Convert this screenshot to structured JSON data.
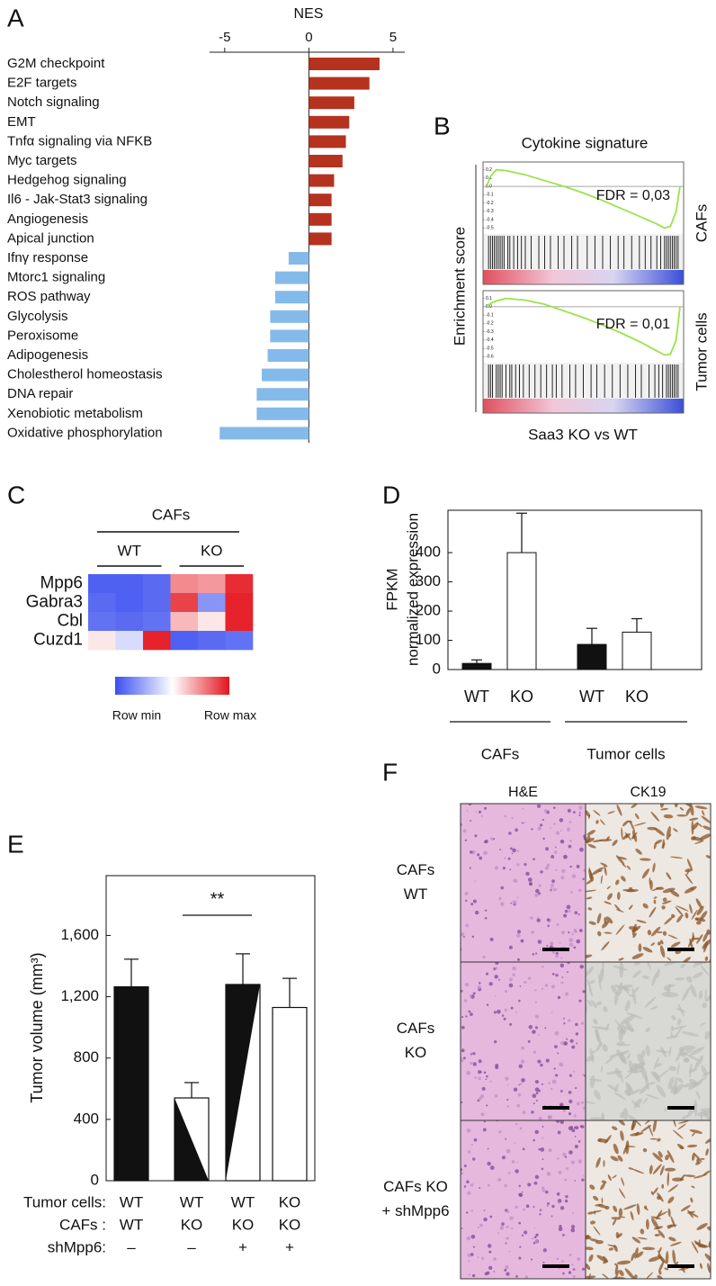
{
  "chart_data": [
    {
      "panel": "A",
      "type": "hbar",
      "title": "NES",
      "categories": [
        "G2M checkpoint",
        "E2F targets",
        "Notch signaling",
        "EMT",
        "Tnfα signaling via NFKB",
        "Myc targets",
        "Hedgehog signaling",
        "Il6 - Jak-Stat3 signaling",
        "Angiogenesis",
        "Apical junction",
        "Ifnγ response",
        "Mtorc1 signaling",
        "ROS pathway",
        "Glycolysis",
        "Peroxisome",
        "Adipogenesis",
        "Cholestherol homeostasis",
        "DNA repair",
        "Xenobiotic metabolism",
        "Oxidative phosphorylation"
      ],
      "values": [
        4.2,
        3.6,
        2.7,
        2.4,
        2.2,
        2.0,
        1.5,
        1.35,
        1.35,
        1.35,
        -1.2,
        -2.0,
        -2.0,
        -2.3,
        -2.3,
        -2.45,
        -2.8,
        -3.1,
        -3.1,
        -5.3
      ],
      "positive_color": "#b5321f",
      "negative_color": "#84baea",
      "xlim": [
        -5.9,
        5.7
      ],
      "xticks": [
        -5,
        0,
        5
      ]
    },
    {
      "panel": "B",
      "type": "gsea",
      "title": "Cytokine signature",
      "y_label": "Enrichment score",
      "x_label": "Saa3 KO vs WT",
      "color": "#9be34a",
      "xlim": [
        0,
        100
      ],
      "series": [
        {
          "name": "CAFs",
          "annotation": "FDR = 0,03",
          "x": [
            0,
            2,
            5,
            10,
            20,
            30,
            40,
            50,
            60,
            70,
            80,
            88,
            92,
            95,
            98,
            100
          ],
          "values": [
            0,
            0.12,
            0.2,
            0.19,
            0.14,
            0.07,
            0.0,
            -0.08,
            -0.17,
            -0.27,
            -0.37,
            -0.45,
            -0.5,
            -0.48,
            -0.3,
            0
          ],
          "ylim": [
            -0.55,
            0.25
          ],
          "yticks": [
            0.2,
            0.1,
            {
              "value": 0,
              "label": "0.0"
            },
            -0.1,
            -0.2,
            -0.3,
            -0.4,
            -0.5
          ],
          "hits": [
            1,
            2,
            3,
            4,
            5,
            6,
            7,
            8,
            9,
            11,
            12,
            14,
            16,
            18,
            20,
            23,
            27,
            30,
            33,
            37,
            40,
            44,
            47,
            52,
            56,
            60,
            64,
            68,
            71,
            75,
            79,
            82,
            85,
            88,
            90,
            92,
            93,
            94,
            95,
            96,
            97,
            98,
            99
          ]
        },
        {
          "name": "Tumor cells",
          "annotation": "FDR = 0,01",
          "x": [
            0,
            2,
            5,
            10,
            20,
            30,
            40,
            50,
            60,
            70,
            80,
            88,
            92,
            95,
            98,
            100
          ],
          "values": [
            0,
            0.04,
            0.07,
            0.1,
            0.08,
            0.03,
            -0.05,
            -0.13,
            -0.22,
            -0.32,
            -0.43,
            -0.53,
            -0.58,
            -0.57,
            -0.4,
            0
          ],
          "ylim": [
            -0.65,
            0.15
          ],
          "yticks": [
            0.1,
            {
              "value": 0,
              "label": "0.0"
            },
            -0.1,
            -0.2,
            -0.3,
            -0.4,
            -0.5,
            -0.6
          ],
          "hits": [
            1,
            2,
            3,
            5,
            6,
            7,
            8,
            10,
            12,
            13,
            15,
            17,
            19,
            22,
            25,
            28,
            31,
            34,
            36,
            39,
            43,
            46,
            50,
            54,
            57,
            61,
            65,
            69,
            73,
            77,
            80,
            84,
            87,
            89,
            91,
            93,
            94,
            95,
            96,
            97,
            98,
            99
          ]
        }
      ]
    },
    {
      "panel": "C",
      "type": "heatmap",
      "title": "CAFs",
      "column_groups": [
        "WT",
        "KO"
      ],
      "rows": [
        "Mpp6",
        "Gabra3",
        "Cbl",
        "Cuzd1"
      ],
      "values": [
        [
          0.05,
          0.05,
          0.08,
          0.75,
          0.72,
          0.95
        ],
        [
          0.08,
          0.05,
          0.08,
          0.9,
          0.2,
          0.97
        ],
        [
          0.1,
          0.08,
          0.1,
          0.65,
          0.55,
          0.97
        ],
        [
          0.55,
          0.4,
          0.97,
          0.05,
          0.08,
          0.1
        ]
      ],
      "zlim": [
        0,
        1
      ],
      "colors": [
        "#3a4ff0",
        "#ffffff",
        "#e4141d"
      ],
      "scale_labels": [
        "Row min",
        "Row max"
      ]
    },
    {
      "panel": "D",
      "type": "bar",
      "y_label": [
        "FPKM",
        "normalized expression"
      ],
      "categories": [
        "WT",
        "KO",
        "WT",
        "KO"
      ],
      "groups": [
        "CAFs",
        "Tumor cells"
      ],
      "values": [
        21,
        400,
        86,
        128
      ],
      "errors": [
        12,
        135,
        55,
        46
      ],
      "colors": [
        "#111111",
        "#ffffff",
        "#111111",
        "#ffffff"
      ],
      "ylim": [
        0,
        545
      ],
      "yticks": [
        0,
        100,
        200,
        300,
        400
      ]
    },
    {
      "panel": "E",
      "type": "bar",
      "y_label": "Tumor volume (mm³)",
      "annotation": "**",
      "condition_rows": [
        {
          "label": "Tumor cells:",
          "values": [
            "WT",
            "WT",
            "WT",
            "KO"
          ]
        },
        {
          "label": "CAFs :",
          "values": [
            "WT",
            "KO",
            "KO",
            "KO"
          ]
        },
        {
          "label": "shMpp6:",
          "values": [
            "–",
            "–",
            "+",
            "+"
          ]
        }
      ],
      "values": [
        1265,
        540,
        1280,
        1130
      ],
      "errors": [
        180,
        100,
        200,
        190
      ],
      "fills": [
        "solid",
        "lower",
        "upper",
        "open"
      ],
      "ylim": [
        0,
        1990
      ],
      "yticks": [
        0,
        400,
        800,
        {
          "value": 1200,
          "label": "1,200"
        },
        {
          "value": 1600,
          "label": "1,600"
        }
      ]
    }
  ],
  "histology": {
    "panel": "F",
    "columns": [
      "H&E",
      "CK19"
    ],
    "rows": [
      [
        "CAFs",
        "WT"
      ],
      [
        "CAFs",
        "KO"
      ],
      [
        "CAFs KO",
        "+ shMpp6"
      ]
    ]
  }
}
